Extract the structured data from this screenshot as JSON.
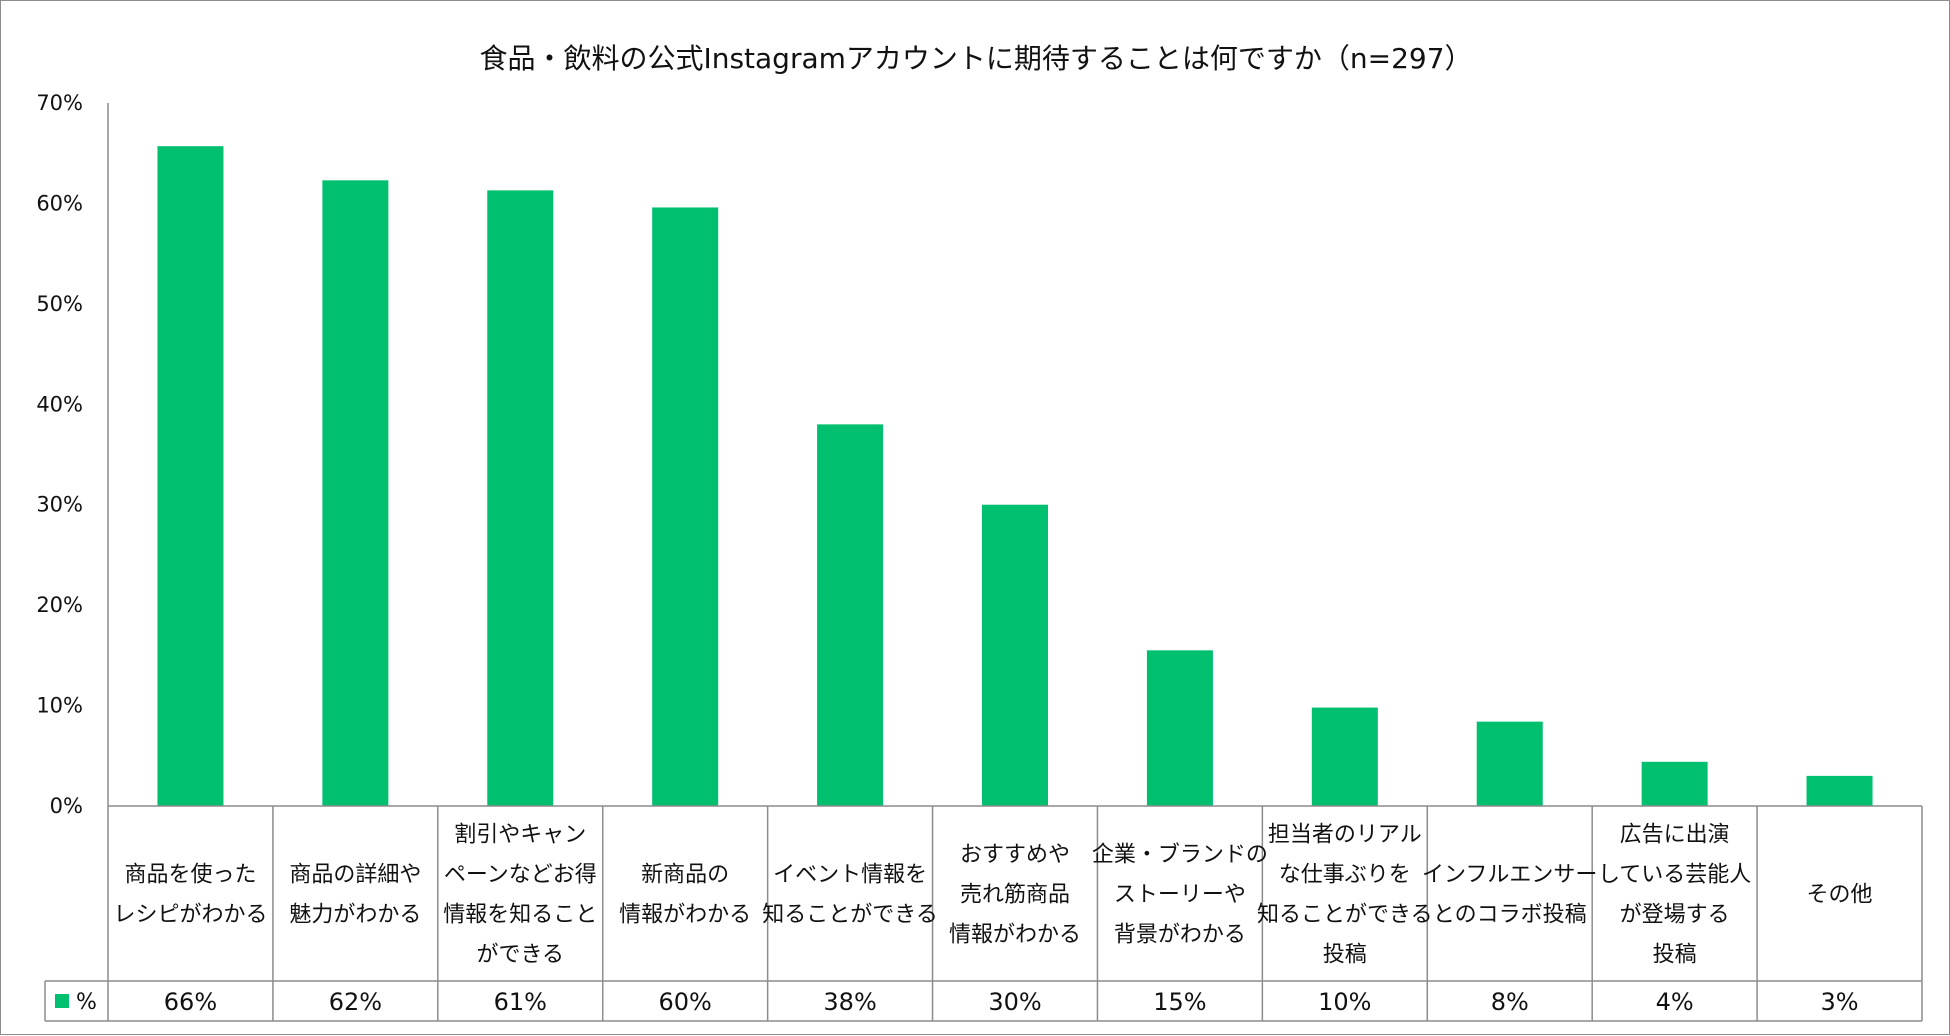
{
  "chart_data": {
    "type": "bar",
    "title": "食品・飲料の公式Instagramアカウントに期待することは何ですか（n=297）",
    "series": [
      {
        "name": "%",
        "color": "#00bf6f",
        "values": [
          65.7,
          62.3,
          61.3,
          59.6,
          38.0,
          30.0,
          15.5,
          9.8,
          8.4,
          4.4,
          3.0
        ],
        "labels": [
          "66%",
          "62%",
          "61%",
          "60%",
          "38%",
          "30%",
          "15%",
          "10%",
          "8%",
          "4%",
          "3%"
        ]
      }
    ],
    "categories": [
      [
        "商品を使った",
        "レシピがわかる"
      ],
      [
        "商品の詳細や",
        "魅力がわかる"
      ],
      [
        "割引やキャン",
        "ペーンなどお得",
        "情報を知ること",
        "ができる"
      ],
      [
        "新商品の",
        "情報がわかる"
      ],
      [
        "イベント情報を",
        "知ることができる"
      ],
      [
        "おすすめや",
        "売れ筋商品",
        "情報がわかる"
      ],
      [
        "企業・ブランドの",
        "ストーリーや",
        "背景がわかる"
      ],
      [
        "担当者のリアル",
        "な仕事ぶりを",
        "知ることができる",
        "投稿"
      ],
      [
        "インフルエンサー",
        "とのコラボ投稿"
      ],
      [
        "広告に出演",
        "している芸能人",
        "が登場する",
        "投稿"
      ],
      [
        "その他"
      ]
    ],
    "yticks": [
      "0%",
      "10%",
      "20%",
      "30%",
      "40%",
      "50%",
      "60%",
      "70%"
    ],
    "ylim": [
      0,
      70
    ],
    "grid": false,
    "legend": "data-table"
  }
}
